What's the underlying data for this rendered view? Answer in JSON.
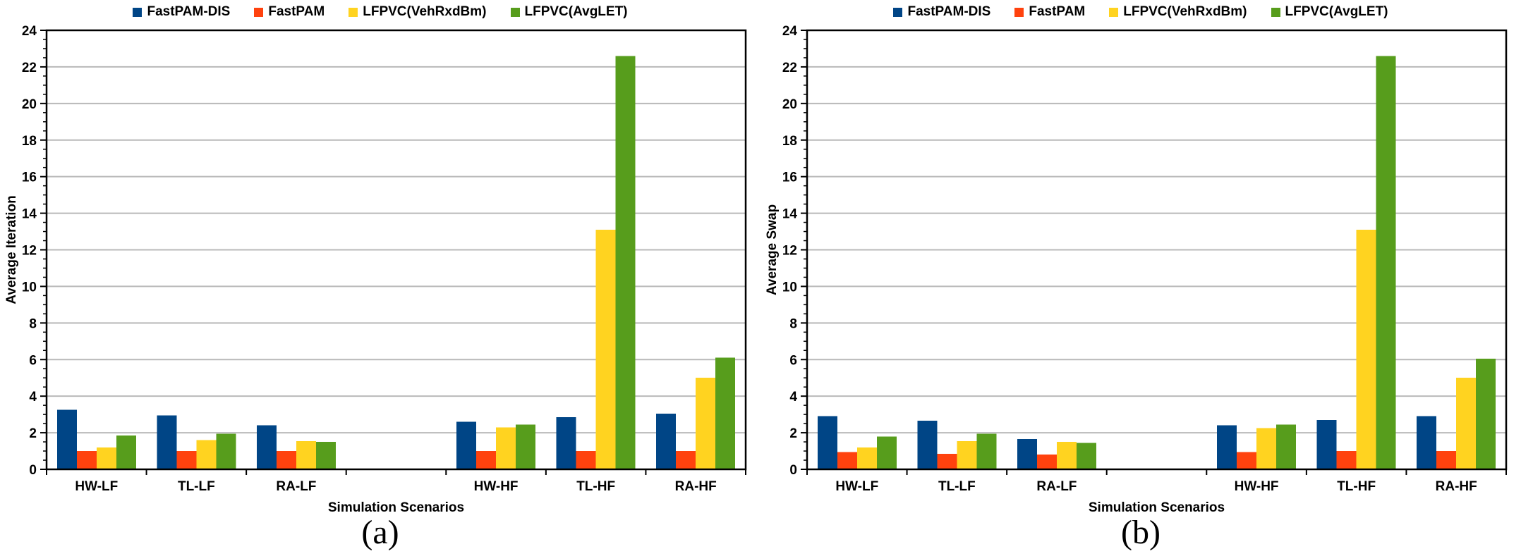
{
  "figure": {
    "panels": [
      {
        "caption": "(a)"
      },
      {
        "caption": "(b)"
      }
    ]
  },
  "chart_data": [
    {
      "type": "bar",
      "title": "",
      "xlabel": "Simulation Scenarios",
      "ylabel": "Average Iteration",
      "ylim": [
        0,
        24
      ],
      "ytick_step": 2,
      "minor_tick_step": 0.5,
      "yticks": [
        0,
        2,
        4,
        6,
        8,
        10,
        12,
        14,
        16,
        18,
        20,
        22,
        24
      ],
      "grid": true,
      "legend_position": "top",
      "categories": [
        "HW-LF",
        "TL-LF",
        "RA-LF",
        "HW-HF",
        "TL-HF",
        "RA-HF"
      ],
      "gap_after_index": 2,
      "series": [
        {
          "name": "FastPAM-DIS",
          "color": "#004586",
          "values": [
            3.25,
            2.95,
            2.4,
            2.6,
            2.85,
            3.05
          ]
        },
        {
          "name": "FastPAM",
          "color": "#FF420E",
          "values": [
            1.0,
            1.0,
            1.0,
            1.0,
            1.0,
            1.0
          ]
        },
        {
          "name": "LFPVC(VehRxdBm)",
          "color": "#FFD320",
          "values": [
            1.2,
            1.6,
            1.55,
            2.3,
            13.1,
            5.0
          ]
        },
        {
          "name": "LFPVC(AvgLET)",
          "color": "#579D1C",
          "values": [
            1.85,
            1.95,
            1.5,
            2.45,
            22.6,
            6.1
          ]
        }
      ]
    },
    {
      "type": "bar",
      "title": "",
      "xlabel": "Simulation Scenarios",
      "ylabel": "Average Swap",
      "ylim": [
        0,
        24
      ],
      "ytick_step": 2,
      "minor_tick_step": 0.5,
      "yticks": [
        0,
        2,
        4,
        6,
        8,
        10,
        12,
        14,
        16,
        18,
        20,
        22,
        24
      ],
      "grid": true,
      "legend_position": "top",
      "categories": [
        "HW-LF",
        "TL-LF",
        "RA-LF",
        "HW-HF",
        "TL-HF",
        "RA-HF"
      ],
      "gap_after_index": 2,
      "series": [
        {
          "name": "FastPAM-DIS",
          "color": "#004586",
          "values": [
            2.9,
            2.65,
            1.65,
            2.4,
            2.7,
            2.9
          ]
        },
        {
          "name": "FastPAM",
          "color": "#FF420E",
          "values": [
            0.95,
            0.85,
            0.8,
            0.95,
            1.0,
            1.0
          ]
        },
        {
          "name": "LFPVC(VehRxdBm)",
          "color": "#FFD320",
          "values": [
            1.2,
            1.55,
            1.5,
            2.25,
            13.1,
            5.0
          ]
        },
        {
          "name": "LFPVC(AvgLET)",
          "color": "#579D1C",
          "values": [
            1.8,
            1.95,
            1.45,
            2.45,
            22.6,
            6.05
          ]
        }
      ]
    }
  ]
}
